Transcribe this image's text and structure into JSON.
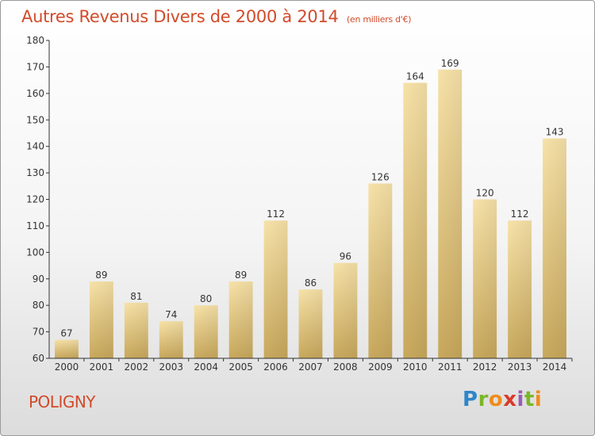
{
  "header": {
    "title": "Autres Revenus Divers de 2000 à 2014",
    "subtitle": "(en milliers d'€)"
  },
  "footer": {
    "commune": "POLIGNY",
    "logo_text": "Proxiti"
  },
  "colors": {
    "title": "#d24a2a",
    "bar_light": "#f7e2a8",
    "bar_dark": "#c8a85c",
    "axis": "#333333"
  },
  "chart_data": {
    "type": "bar",
    "title": "Autres Revenus Divers de 2000 à 2014",
    "subtitle": "(en milliers d'€)",
    "categories": [
      "2000",
      "2001",
      "2002",
      "2003",
      "2004",
      "2005",
      "2006",
      "2007",
      "2008",
      "2009",
      "2010",
      "2011",
      "2012",
      "2013",
      "2014"
    ],
    "values": [
      67,
      89,
      81,
      74,
      80,
      89,
      112,
      86,
      96,
      126,
      164,
      169,
      120,
      112,
      143
    ],
    "ylim": [
      60,
      180
    ],
    "yticks": [
      60,
      70,
      80,
      90,
      100,
      110,
      120,
      130,
      140,
      150,
      160,
      170,
      180
    ],
    "xlabel": "",
    "ylabel": "",
    "grid": false,
    "data_labels": true
  }
}
